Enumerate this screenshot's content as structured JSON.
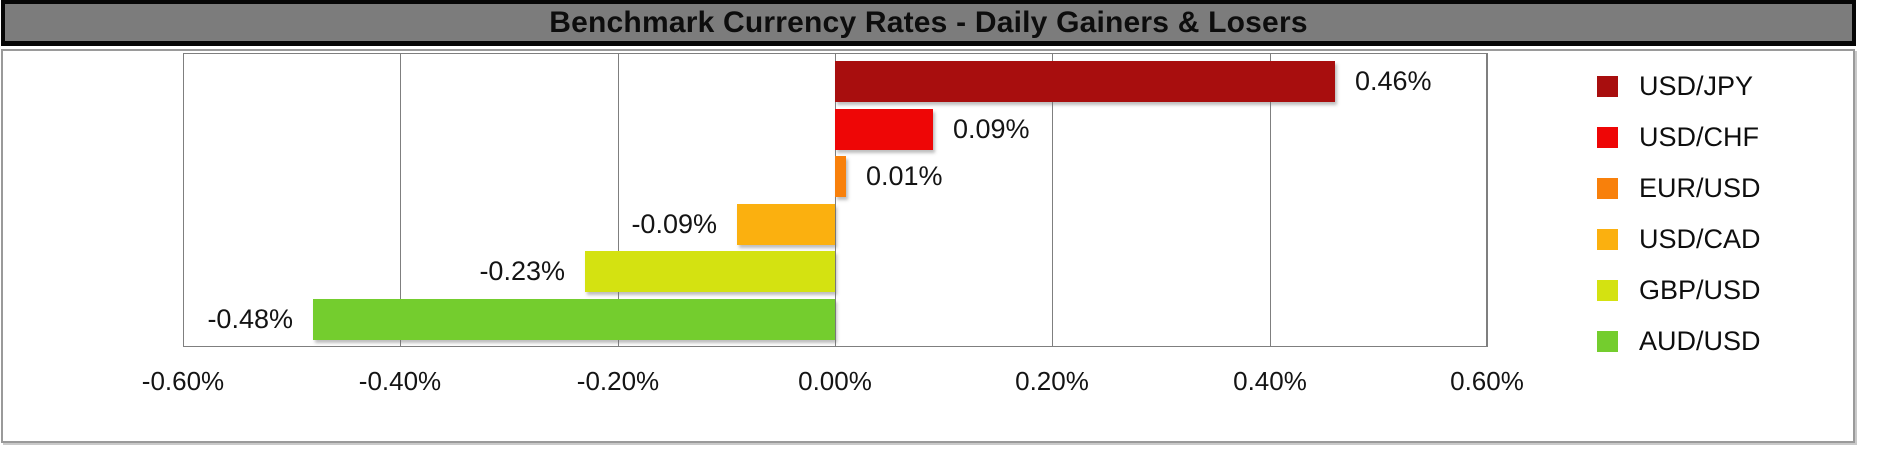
{
  "title": "Benchmark Currency Rates - Daily Gainers & Losers",
  "chart_data": {
    "type": "bar",
    "orientation": "horizontal",
    "title": "Benchmark Currency Rates - Daily Gainers & Losers",
    "unit": "%",
    "xlim": [
      -0.6,
      0.6
    ],
    "x_tick_values": [
      -0.6,
      -0.4,
      -0.2,
      0.0,
      0.2,
      0.4,
      0.6
    ],
    "x_tick_labels": [
      "-0.60%",
      "-0.40%",
      "-0.20%",
      "0.00%",
      "0.20%",
      "0.40%",
      "0.60%"
    ],
    "grid": "vertical-only",
    "legend_position": "right",
    "series": [
      {
        "name": "USD/JPY",
        "value": 0.46,
        "data_label": "0.46%",
        "color": "#a80e0e"
      },
      {
        "name": "USD/CHF",
        "value": 0.09,
        "data_label": "0.09%",
        "color": "#ee0606"
      },
      {
        "name": "EUR/USD",
        "value": 0.01,
        "data_label": "0.01%",
        "color": "#f8800b"
      },
      {
        "name": "USD/CAD",
        "value": -0.09,
        "data_label": "-0.09%",
        "color": "#fbb00f"
      },
      {
        "name": "GBP/USD",
        "value": -0.23,
        "data_label": "-0.23%",
        "color": "#d4e211"
      },
      {
        "name": "AUD/USD",
        "value": -0.48,
        "data_label": "-0.48%",
        "color": "#74cd2e"
      }
    ],
    "colors": {
      "title_bar_bg": "#7c7c7c",
      "title_bar_border": "#060606",
      "chart_border": "#9a9a9a",
      "gridline": "#7f7f7f",
      "text": "#141414"
    }
  }
}
